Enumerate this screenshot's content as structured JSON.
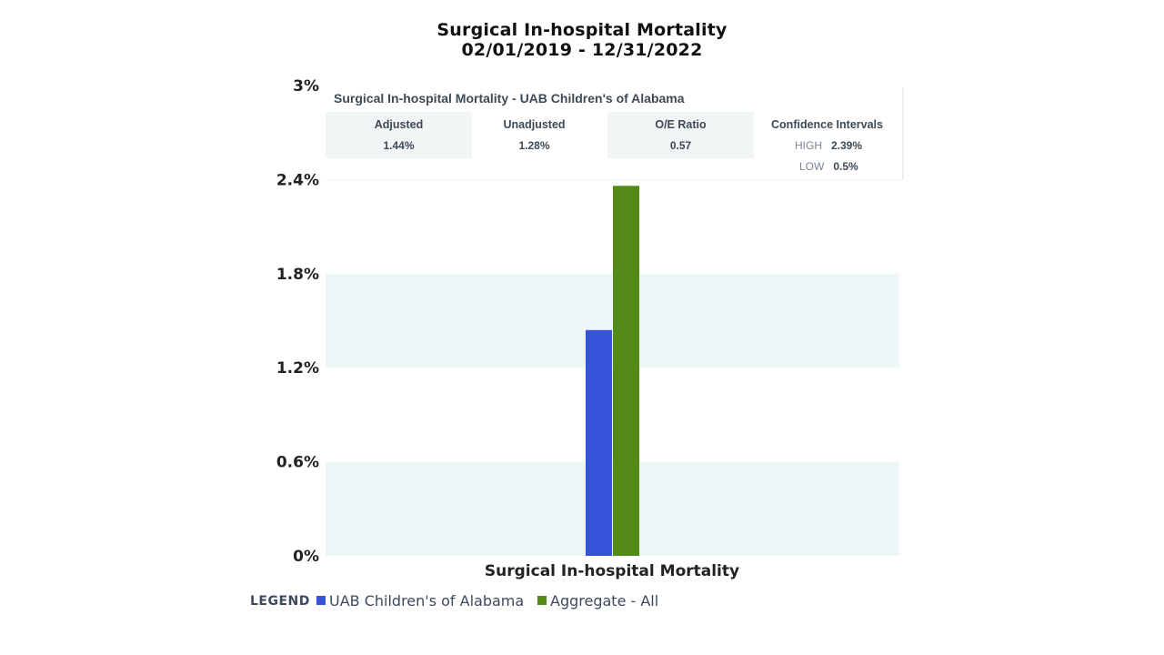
{
  "chart_data": {
    "type": "bar",
    "title": "Surgical In-hospital Mortality",
    "subtitle": "02/01/2019 - 12/31/2022",
    "categories": [
      "Surgical In-hospital Mortality"
    ],
    "series": [
      {
        "name": "UAB Children's of Alabama",
        "values": [
          1.44
        ],
        "color": "#3654db"
      },
      {
        "name": "Aggregate - All",
        "values": [
          2.36
        ],
        "color": "#538a17"
      }
    ],
    "xlabel": "Surgical In-hospital Mortality",
    "ylabel": "",
    "ylim": [
      0,
      3
    ],
    "yticks": [
      "0%",
      "0.6%",
      "1.2%",
      "1.8%",
      "2.4%",
      "3%"
    ],
    "ytick_values": [
      0,
      0.6,
      1.2,
      1.8,
      2.4,
      3.0
    ],
    "grid": "alternating-bands",
    "band_color": "#eef6f7",
    "legend_placement": "bottom-left"
  },
  "stats_panel": {
    "title": "Surgical In-hospital Mortality - UAB Children's of Alabama",
    "adjusted": {
      "label": "Adjusted",
      "value": "1.44%"
    },
    "unadjusted": {
      "label": "Unadjusted",
      "value": "1.28%"
    },
    "oe_ratio": {
      "label": "O/E Ratio",
      "value": "0.57"
    },
    "confidence_intervals": {
      "label": "Confidence Intervals",
      "high_label": "HIGH",
      "high_value": "2.39%",
      "low_label": "LOW",
      "low_value": "0.5%"
    }
  },
  "legend": {
    "title": "LEGEND",
    "items": [
      {
        "label": "UAB Children's of Alabama",
        "color": "#3654db"
      },
      {
        "label": "Aggregate - All",
        "color": "#538a17"
      }
    ]
  }
}
